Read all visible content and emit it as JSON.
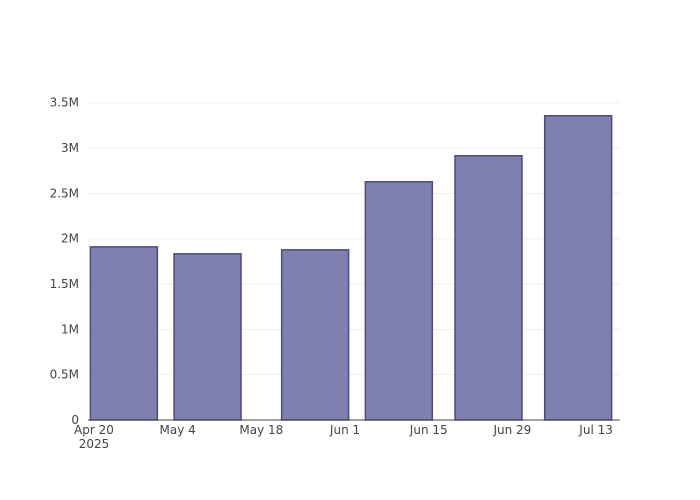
{
  "chart_data": {
    "type": "bar",
    "x": [
      "2025-04-25",
      "2025-05-09",
      "2025-05-27",
      "2025-06-10",
      "2025-06-25",
      "2025-07-10"
    ],
    "values": [
      1910000,
      1833000,
      1877000,
      2628000,
      2915000,
      3356000
    ],
    "color": "#7f7fb0",
    "edge_color": "#4b4b85",
    "xlim": [
      "2025-04-19",
      "2025-07-17"
    ],
    "xticks": [
      {
        "value": "2025-04-20",
        "label": "Apr 20\n2025"
      },
      {
        "value": "2025-05-04",
        "label": "May 4"
      },
      {
        "value": "2025-05-18",
        "label": "May 18"
      },
      {
        "value": "2025-06-01",
        "label": "Jun 1"
      },
      {
        "value": "2025-06-15",
        "label": "Jun 15"
      },
      {
        "value": "2025-06-29",
        "label": "Jun 29"
      },
      {
        "value": "2025-07-13",
        "label": "Jul 13"
      }
    ],
    "ylim": [
      0,
      3530000
    ],
    "yticks": [
      0,
      {
        "value": 500000,
        "label": "0.5M"
      },
      {
        "value": 1000000,
        "label": "1M"
      },
      {
        "value": 1500000,
        "label": "1.5M"
      },
      {
        "value": 2000000,
        "label": "2M"
      },
      {
        "value": 2500000,
        "label": "2.5M"
      },
      {
        "value": 3000000,
        "label": "3M"
      },
      {
        "value": 3500000,
        "label": "3.5M"
      }
    ],
    "grid": true
  }
}
